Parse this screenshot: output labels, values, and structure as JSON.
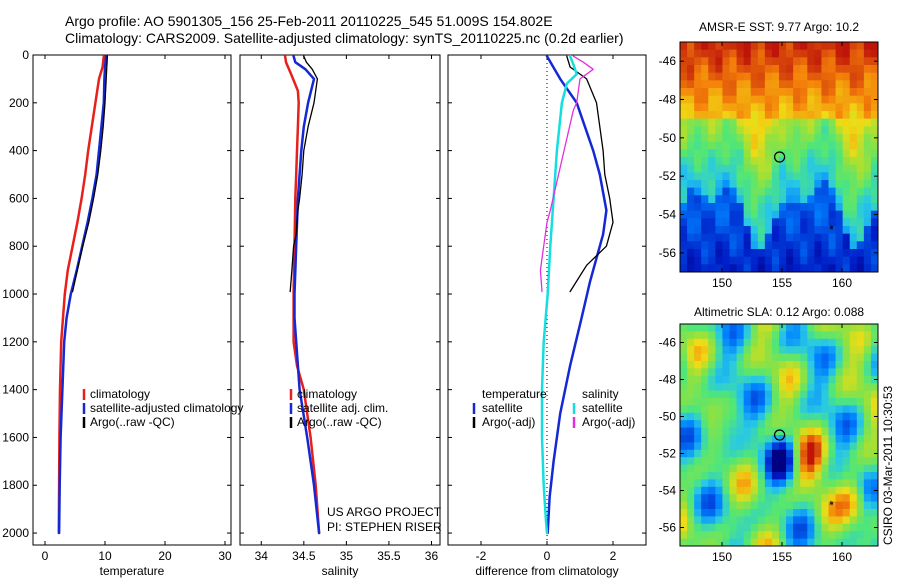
{
  "header": {
    "line1": "Argo profile: AO 5901305_156 25-Feb-2011 20110225_545 51.009S 154.802E",
    "line2": "Climatology: CARS2009. Satellite-adjusted climatology: synTS_20110225.nc (0.2d earlier)"
  },
  "credit": {
    "line1": "US ARGO PROJECT",
    "line2": "PI: STEPHEN RISER"
  },
  "timestamp": "CSIRO 03-Mar-2011 10:30:53",
  "colors": {
    "red": "#e8201c",
    "blue": "#1428d4",
    "black": "#000000",
    "cyan": "#16dede",
    "magenta": "#e030e0"
  },
  "chart_data": [
    {
      "type": "line",
      "xlabel": "temperature",
      "ylabel": "",
      "xlim": [
        -2,
        31
      ],
      "ylim": [
        2050,
        0
      ],
      "xticks": [
        0,
        10,
        20,
        30
      ],
      "yticks": [
        0,
        200,
        400,
        600,
        800,
        1000,
        1200,
        1400,
        1600,
        1800,
        2000
      ],
      "legend_position": "lower-right",
      "legend": [
        {
          "label": "climatology",
          "color": "#e8201c"
        },
        {
          "label": "satellite-adjusted climatology",
          "color": "#1428d4"
        },
        {
          "label": "Argo(..raw -QC)",
          "color": "#000000"
        }
      ],
      "series": [
        {
          "name": "climatology",
          "color": "#e8201c",
          "width": 2.5,
          "x": [
            9.8,
            9.6,
            9.0,
            8.4,
            7.8,
            7.2,
            6.7,
            6.1,
            5.4,
            4.6,
            3.8,
            3.3,
            3.0,
            2.7,
            2.5,
            2.4,
            2.35,
            2.3
          ],
          "y": [
            5,
            50,
            100,
            200,
            300,
            400,
            500,
            600,
            700,
            800,
            900,
            1000,
            1100,
            1200,
            1400,
            1600,
            1800,
            2000
          ]
        },
        {
          "name": "satellite-adjusted climatology",
          "color": "#1428d4",
          "width": 2.5,
          "x": [
            10.2,
            10.0,
            9.9,
            9.8,
            9.4,
            9.0,
            8.6,
            7.9,
            7.1,
            6.2,
            5.3,
            4.3,
            3.6,
            3.2,
            2.9,
            2.6,
            2.45,
            2.35
          ],
          "y": [
            5,
            50,
            100,
            200,
            300,
            400,
            500,
            600,
            700,
            800,
            900,
            1000,
            1100,
            1200,
            1400,
            1600,
            1800,
            2000
          ]
        },
        {
          "name": "Argo(..raw -QC)",
          "color": "#000000",
          "width": 1.3,
          "x": [
            10.4,
            10.3,
            10.2,
            10.0,
            9.7,
            9.3,
            8.8,
            8.1,
            7.3,
            6.3,
            5.4,
            4.6
          ],
          "y": [
            5,
            50,
            100,
            200,
            300,
            400,
            500,
            600,
            700,
            800,
            900,
            990
          ]
        }
      ]
    },
    {
      "type": "line",
      "xlabel": "salinity",
      "ylabel": "",
      "xlim": [
        33.75,
        36.1
      ],
      "ylim": [
        2050,
        0
      ],
      "xticks": [
        34,
        34.5,
        35,
        35.5,
        36
      ],
      "xtick_labels": [
        "34",
        "34.5",
        "35",
        "35.5",
        "36"
      ],
      "legend_position": "lower-right",
      "legend": [
        {
          "label": "climatology",
          "color": "#e8201c"
        },
        {
          "label": "satellite adj. clim.",
          "color": "#1428d4"
        },
        {
          "label": "Argo(..raw -QC)",
          "color": "#000000"
        }
      ],
      "series": [
        {
          "name": "climatology",
          "color": "#e8201c",
          "width": 2.5,
          "x": [
            34.28,
            34.29,
            34.35,
            34.43,
            34.44,
            34.43,
            34.42,
            34.41,
            34.4,
            34.39,
            34.38,
            34.38,
            34.42,
            34.5,
            34.58,
            34.64,
            34.68
          ],
          "y": [
            5,
            30,
            80,
            150,
            200,
            300,
            400,
            500,
            600,
            800,
            1000,
            1200,
            1300,
            1400,
            1600,
            1800,
            2000
          ]
        },
        {
          "name": "satellite adj. clim.",
          "color": "#1428d4",
          "width": 2.5,
          "x": [
            34.38,
            34.4,
            34.52,
            34.62,
            34.55,
            34.5,
            34.47,
            34.45,
            34.43,
            34.41,
            34.39,
            34.39,
            34.41,
            34.45,
            34.54,
            34.62,
            34.68
          ],
          "y": [
            5,
            30,
            60,
            100,
            200,
            300,
            400,
            500,
            600,
            800,
            1000,
            1100,
            1200,
            1400,
            1600,
            1800,
            2000
          ]
        },
        {
          "name": "Argo(..raw -QC)",
          "color": "#000000",
          "width": 1.3,
          "x": [
            34.5,
            34.53,
            34.6,
            34.66,
            34.62,
            34.55,
            34.5,
            34.48,
            34.45,
            34.43,
            34.42,
            34.41,
            34.38,
            34.36,
            34.34
          ],
          "y": [
            5,
            30,
            60,
            100,
            200,
            300,
            400,
            500,
            600,
            650,
            700,
            750,
            800,
            900,
            990
          ]
        }
      ]
    },
    {
      "type": "line",
      "xlabel": "difference from climatology",
      "ylabel": "",
      "xlim": [
        -3,
        3
      ],
      "ylim": [
        2050,
        0
      ],
      "xticks": [
        -2,
        0,
        2
      ],
      "zero_line": true,
      "legend_position": "lower-center",
      "legend_groups": [
        {
          "title": "temperature",
          "items": [
            {
              "label": "satellite",
              "color": "#1428d4"
            },
            {
              "label": "Argo(-adj)",
              "color": "#000000"
            }
          ]
        },
        {
          "title": "salinity",
          "items": [
            {
              "label": "satellite",
              "color": "#16dede"
            },
            {
              "label": "Argo(-adj)",
              "color": "#e030e0"
            }
          ]
        }
      ],
      "series": [
        {
          "name": "temperature satellite",
          "color": "#1428d4",
          "width": 2.5,
          "x": [
            0.0,
            0.4,
            0.9,
            1.4,
            1.6,
            1.8,
            1.7,
            1.5,
            1.3,
            1.05,
            0.7,
            0.4,
            0.2,
            0.08,
            0.02
          ],
          "y": [
            5,
            100,
            200,
            400,
            500,
            650,
            750,
            850,
            950,
            1100,
            1300,
            1500,
            1700,
            1850,
            2000
          ]
        },
        {
          "name": "temperature Argo(-adj)",
          "color": "#000000",
          "width": 1.3,
          "x": [
            0.6,
            0.7,
            1.2,
            1.5,
            1.6,
            1.7,
            1.75,
            1.9,
            2.0,
            1.8,
            1.2,
            0.7
          ],
          "y": [
            5,
            50,
            100,
            200,
            300,
            400,
            500,
            600,
            700,
            800,
            880,
            990
          ]
        },
        {
          "name": "salinity satellite",
          "color": "#16dede",
          "width": 2.5,
          "x": [
            0.7,
            0.8,
            0.9,
            0.6,
            0.45,
            0.3,
            0.1,
            0.02,
            -0.1,
            -0.15,
            -0.15,
            -0.1,
            -0.03,
            0.0
          ],
          "y": [
            5,
            40,
            80,
            120,
            200,
            400,
            800,
            1000,
            1200,
            1400,
            1600,
            1800,
            1950,
            2000
          ]
        },
        {
          "name": "salinity Argo(-adj)",
          "color": "#e030e0",
          "width": 1.3,
          "x": [
            0.8,
            1.1,
            1.4,
            1.0,
            0.9,
            0.8,
            0.1,
            0.0,
            -0.1,
            -0.2,
            -0.15
          ],
          "y": [
            5,
            30,
            60,
            100,
            200,
            230,
            650,
            700,
            800,
            900,
            990
          ]
        }
      ]
    },
    {
      "type": "heatmap",
      "title": "AMSR-E SST: 9.77  Argo: 10.2",
      "xlim": [
        146.5,
        163.0
      ],
      "ylim": [
        -57.0,
        -45.0
      ],
      "xticks": [
        150,
        155,
        160
      ],
      "yticks": [
        -46,
        -48,
        -50,
        -52,
        -54,
        -56
      ],
      "marker": {
        "x": 154.8,
        "y": -51.0
      }
    },
    {
      "type": "heatmap",
      "title": "Altimetric SLA: 0.12  Argo: 0.088",
      "xlim": [
        146.5,
        163.0
      ],
      "ylim": [
        -57.0,
        -45.0
      ],
      "xticks": [
        150,
        155,
        160
      ],
      "yticks": [
        -46,
        -48,
        -50,
        -52,
        -54,
        -56
      ],
      "marker": {
        "x": 154.8,
        "y": -51.0
      }
    }
  ]
}
